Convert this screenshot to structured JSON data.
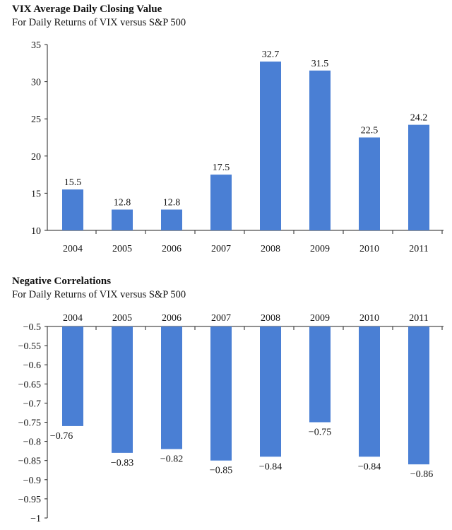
{
  "chart_data": [
    {
      "type": "bar",
      "title": "VIX Average Daily Closing Value",
      "subtitle": "For Daily Returns of VIX versus S&P 500",
      "categories": [
        "2004",
        "2005",
        "2006",
        "2007",
        "2008",
        "2009",
        "2010",
        "2011"
      ],
      "values": [
        15.5,
        12.8,
        12.8,
        17.5,
        32.7,
        31.5,
        22.5,
        24.2
      ],
      "data_labels": [
        "15.5",
        "12.8",
        "12.8",
        "17.5",
        "32.7",
        "31.5",
        "22.5",
        "24.2"
      ],
      "ylim": [
        10,
        35
      ],
      "yticks": [
        10,
        15,
        20,
        25,
        30,
        35
      ],
      "ytick_labels": [
        "10",
        "15",
        "20",
        "25",
        "30",
        "35"
      ],
      "xlabel": "",
      "ylabel": "",
      "grid": false,
      "bar_color": "#4a7fd4"
    },
    {
      "type": "bar",
      "title": "Negative Correlations",
      "subtitle": "For Daily Returns of VIX versus S&P 500",
      "categories": [
        "2004",
        "2005",
        "2006",
        "2007",
        "2008",
        "2009",
        "2010",
        "2011"
      ],
      "values": [
        -0.76,
        -0.83,
        -0.82,
        -0.85,
        -0.84,
        -0.75,
        -0.84,
        -0.86
      ],
      "data_labels": [
        "−0.76",
        "−0.83",
        "−0.82",
        "−0.85",
        "−0.84",
        "−0.75",
        "−0.84",
        "−0.86"
      ],
      "ylim": [
        -1,
        -0.5
      ],
      "yticks": [
        -0.5,
        -0.55,
        -0.6,
        -0.65,
        -0.7,
        -0.75,
        -0.8,
        -0.85,
        -0.9,
        -0.95,
        -1
      ],
      "ytick_labels": [
        "−0.5",
        "−0.55",
        "−0.6",
        "−0.65",
        "−0.7",
        "−0.75",
        "−0.8",
        "−0.85",
        "−0.9",
        "−0.95",
        "−1"
      ],
      "xaxis_position": "top",
      "xlabel": "",
      "ylabel": "",
      "grid": false,
      "bar_color": "#4a7fd4"
    }
  ]
}
